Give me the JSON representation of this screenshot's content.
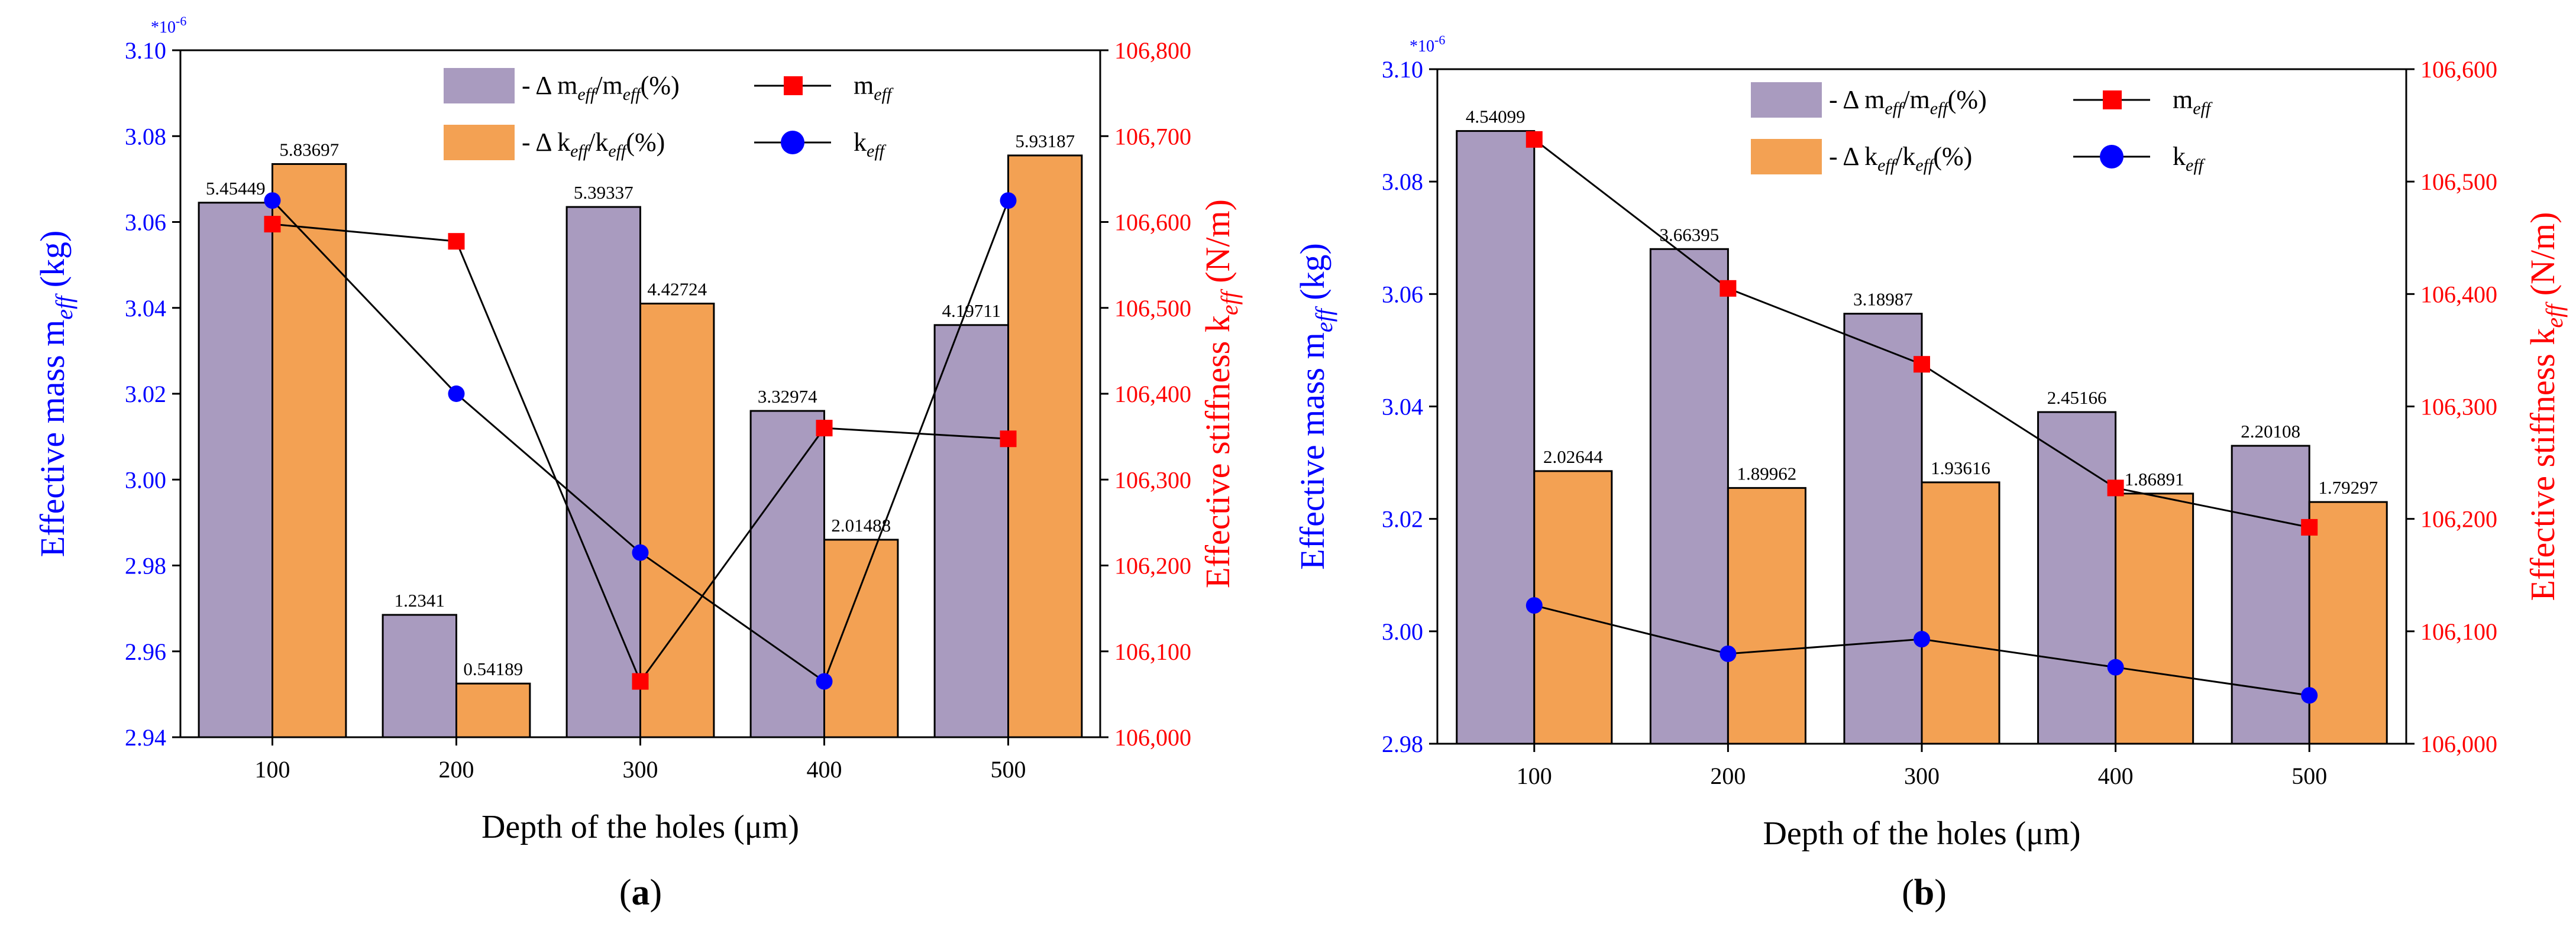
{
  "figure": {
    "panel_labels": [
      "(a)",
      "(b)"
    ]
  },
  "style": {
    "bar_mass_color": "#A99BBF",
    "bar_stiff_color": "#F3A153",
    "mass_line_marker_color": "#FF0000",
    "stiff_line_marker_color": "#0000FF",
    "left_axis_color": "#0000FF",
    "right_axis_color": "#FF0000",
    "line_color": "#000000"
  },
  "chart_data": [
    {
      "type": "bar",
      "panel": "(a)",
      "categories": [
        "100",
        "200",
        "300",
        "400",
        "500"
      ],
      "xlabel": "Depth of the holes (μm)",
      "ylabel_left": "Effective mass m_eff (kg)",
      "ylabel_right": "Effective stiffness k_eff (N/m)",
      "left_exponent_label": "*10-6",
      "ylim_left": [
        2.94,
        3.1
      ],
      "yticks_left": [
        "2.94",
        "2.96",
        "2.98",
        "3.00",
        "3.02",
        "3.04",
        "3.06",
        "3.08",
        "3.10"
      ],
      "ylim_right": [
        106000,
        106800
      ],
      "yticks_right": [
        "106,000",
        "106,100",
        "106,200",
        "106,300",
        "106,400",
        "106,500",
        "106,600",
        "106,700",
        "106,800"
      ],
      "legend": [
        "- Δ m_eff/m_eff(%)",
        "- Δ k_eff/k_eff(%)",
        "m_eff",
        "k_eff"
      ],
      "bars": [
        {
          "name": "Δ m_eff/m_eff(%)",
          "labels": [
            "5.45449",
            "1.2341",
            "5.39337",
            "3.32974",
            "4.19711"
          ],
          "values": [
            5.45449,
            1.2341,
            5.39337,
            3.32974,
            4.19711
          ],
          "left_axis_height": [
            3.0645,
            2.9685,
            3.0635,
            3.016,
            3.036
          ]
        },
        {
          "name": "Δ k_eff/k_eff(%)",
          "labels": [
            "5.83697",
            "0.54189",
            "4.42724",
            "2.01488",
            "5.93187"
          ],
          "values": [
            5.83697,
            0.54189,
            4.42724,
            2.01488,
            5.93187
          ],
          "left_axis_height": [
            3.0735,
            2.9525,
            3.041,
            2.986,
            3.0755
          ]
        }
      ],
      "series": [
        {
          "name": "m_eff",
          "axis": "left",
          "values": [
            3.0595,
            3.0555,
            2.953,
            3.012,
            3.0095
          ]
        },
        {
          "name": "k_eff",
          "axis": "right",
          "values": [
            106625,
            106400,
            106215,
            106065,
            106625
          ]
        }
      ]
    },
    {
      "type": "bar",
      "panel": "(b)",
      "categories": [
        "100",
        "200",
        "300",
        "400",
        "500"
      ],
      "xlabel": "Depth of the holes (μm)",
      "ylabel_left": "Effective mass m_eff (kg)",
      "ylabel_right": "Effective stiffness k_eff (N/m)",
      "left_exponent_label": "*10-6",
      "ylim_left": [
        2.98,
        3.1
      ],
      "yticks_left": [
        "2.98",
        "3.00",
        "3.02",
        "3.04",
        "3.06",
        "3.08",
        "3.10"
      ],
      "ylim_right": [
        106000,
        106600
      ],
      "yticks_right": [
        "106,000",
        "106,100",
        "106,200",
        "106,300",
        "106,400",
        "106,500",
        "106,600"
      ],
      "legend": [
        "- Δ m_eff/m_eff(%)",
        "- Δ k_eff/k_eff(%)",
        "m_eff",
        "k_eff"
      ],
      "bars": [
        {
          "name": "Δ m_eff/m_eff(%)",
          "labels": [
            "4.54099",
            "3.66395",
            "3.18987",
            "2.45166",
            "2.20108"
          ],
          "values": [
            4.54099,
            3.66395,
            3.18987,
            2.45166,
            2.20108
          ],
          "left_axis_height": [
            3.089,
            3.068,
            3.0565,
            3.039,
            3.033
          ]
        },
        {
          "name": "Δ k_eff/k_eff(%)",
          "labels": [
            "2.02644",
            "1.89962",
            "1.93616",
            "1.86891",
            "1.79297"
          ],
          "values": [
            2.02644,
            1.89962,
            1.93616,
            1.86891,
            1.79297
          ],
          "left_axis_height": [
            3.0285,
            3.0255,
            3.0265,
            3.0245,
            3.023
          ]
        }
      ],
      "series": [
        {
          "name": "m_eff",
          "axis": "left",
          "values": [
            3.0875,
            3.061,
            3.0475,
            3.0255,
            3.0185
          ]
        },
        {
          "name": "k_eff",
          "axis": "right",
          "values": [
            106123,
            106080,
            106093,
            106068,
            106043
          ]
        }
      ]
    }
  ]
}
